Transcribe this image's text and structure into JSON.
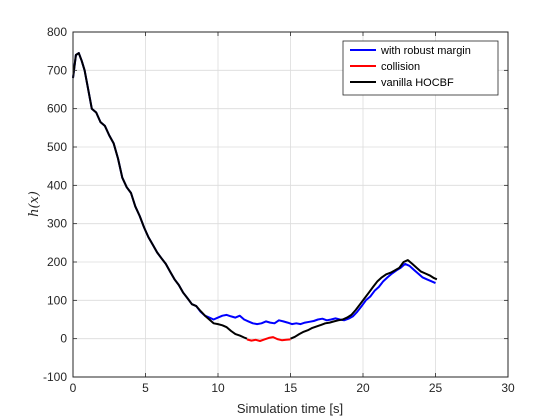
{
  "chart_data": {
    "type": "line",
    "title": "",
    "xlabel": "Simulation time [s]",
    "ylabel": "h(x)",
    "xlim": [
      0,
      30
    ],
    "ylim": [
      -100,
      800
    ],
    "xticks": [
      0,
      5,
      10,
      15,
      20,
      25,
      30
    ],
    "yticks": [
      -100,
      0,
      100,
      200,
      300,
      400,
      500,
      600,
      700,
      800
    ],
    "grid": true,
    "legend_position": "top-right",
    "series": [
      {
        "name": "with robust margin",
        "color": "#0000ff",
        "x": [
          0.0,
          0.2,
          0.4,
          0.6,
          0.8,
          1.0,
          1.3,
          1.6,
          1.9,
          2.2,
          2.5,
          2.8,
          3.1,
          3.4,
          3.7,
          4.0,
          4.3,
          4.6,
          4.9,
          5.2,
          5.5,
          5.8,
          6.1,
          6.4,
          6.7,
          7.0,
          7.3,
          7.6,
          7.9,
          8.2,
          8.5,
          8.8,
          9.1,
          9.4,
          9.7,
          10.0,
          10.3,
          10.6,
          10.9,
          11.2,
          11.5,
          11.8,
          12.1,
          12.4,
          12.7,
          13.0,
          13.3,
          13.6,
          13.9,
          14.2,
          14.5,
          14.8,
          15.1,
          15.4,
          15.7,
          16.0,
          16.3,
          16.6,
          16.9,
          17.2,
          17.5,
          17.8,
          18.1,
          18.4,
          18.7,
          19.0,
          19.3,
          19.6,
          19.9,
          20.2,
          20.5,
          20.8,
          21.1,
          21.4,
          21.7,
          22.0,
          22.3,
          22.6,
          22.9,
          23.2,
          23.5,
          23.8,
          24.1,
          24.4,
          24.7,
          25.0
        ],
        "y": [
          680,
          740,
          745,
          725,
          700,
          660,
          600,
          590,
          565,
          555,
          530,
          510,
          470,
          420,
          395,
          380,
          345,
          320,
          290,
          265,
          245,
          225,
          210,
          195,
          175,
          155,
          140,
          120,
          105,
          90,
          85,
          70,
          60,
          55,
          50,
          55,
          60,
          62,
          58,
          55,
          60,
          50,
          45,
          40,
          38,
          40,
          45,
          42,
          40,
          48,
          45,
          42,
          38,
          40,
          38,
          42,
          44,
          46,
          50,
          52,
          48,
          50,
          53,
          50,
          48,
          52,
          58,
          70,
          85,
          100,
          110,
          125,
          135,
          150,
          160,
          170,
          178,
          185,
          195,
          190,
          180,
          170,
          160,
          155,
          150,
          145
        ]
      },
      {
        "name": "collision",
        "color": "#ff0000",
        "x": [
          12.0,
          12.3,
          12.6,
          12.9,
          13.2,
          13.5,
          13.8,
          14.1,
          14.4,
          14.7,
          15.0
        ],
        "y": [
          -2,
          -5,
          -3,
          -6,
          -2,
          2,
          4,
          -1,
          -4,
          -3,
          -2
        ]
      },
      {
        "name": "vanilla HOCBF",
        "color": "#000000",
        "x": [
          0.0,
          0.2,
          0.4,
          0.6,
          0.8,
          1.0,
          1.3,
          1.6,
          1.9,
          2.2,
          2.5,
          2.8,
          3.1,
          3.4,
          3.7,
          4.0,
          4.3,
          4.6,
          4.9,
          5.2,
          5.5,
          5.8,
          6.1,
          6.4,
          6.7,
          7.0,
          7.3,
          7.6,
          7.9,
          8.2,
          8.5,
          8.8,
          9.1,
          9.4,
          9.7,
          10.0,
          10.3,
          10.6,
          10.9,
          11.2,
          11.5,
          11.8,
          12.0
        ],
        "y": [
          680,
          740,
          745,
          725,
          700,
          660,
          600,
          590,
          565,
          555,
          530,
          510,
          470,
          420,
          395,
          380,
          345,
          320,
          290,
          265,
          245,
          225,
          210,
          195,
          175,
          155,
          140,
          120,
          105,
          90,
          85,
          72,
          60,
          50,
          40,
          38,
          35,
          30,
          20,
          12,
          8,
          3,
          0
        ]
      },
      {
        "name": "vanilla HOCBF",
        "color": "#000000",
        "x": [
          15.0,
          15.3,
          15.6,
          15.9,
          16.2,
          16.5,
          16.8,
          17.1,
          17.4,
          17.7,
          18.0,
          18.3,
          18.6,
          18.9,
          19.2,
          19.5,
          19.8,
          20.1,
          20.4,
          20.7,
          21.0,
          21.3,
          21.6,
          21.9,
          22.2,
          22.5,
          22.8,
          23.1,
          23.4,
          23.7,
          24.0,
          24.3,
          24.6,
          24.9,
          25.1
        ],
        "y": [
          0,
          5,
          12,
          18,
          22,
          28,
          32,
          36,
          40,
          42,
          45,
          48,
          50,
          55,
          62,
          75,
          90,
          105,
          120,
          135,
          150,
          160,
          168,
          172,
          178,
          185,
          200,
          205,
          195,
          185,
          175,
          170,
          165,
          158,
          155
        ]
      }
    ],
    "legend": [
      {
        "label": "with robust margin",
        "color": "#0000ff"
      },
      {
        "label": "collision",
        "color": "#ff0000"
      },
      {
        "label": "vanilla HOCBF",
        "color": "#000000"
      }
    ]
  }
}
